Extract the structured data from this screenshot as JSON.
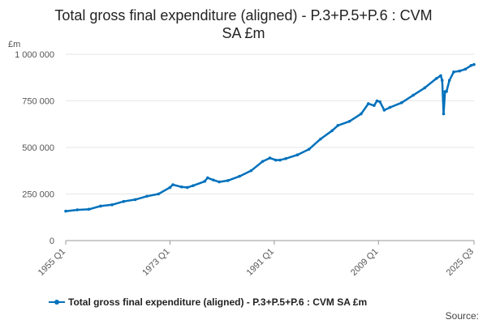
{
  "chart_data": {
    "type": "line",
    "title_lines": [
      "Total gross final expenditure (aligned) - P.3+P.5+P.6 : CVM",
      "SA £m"
    ],
    "unit_label": "£m",
    "x_range": [
      "1955 Q1",
      "2025 Q3"
    ],
    "x_ticks": [
      "1955 Q1",
      "1973 Q1",
      "1991 Q1",
      "2009 Q1",
      "2025 Q3"
    ],
    "ylim": [
      0,
      1000000
    ],
    "y_ticks": [
      0,
      250000,
      500000,
      750000,
      1000000
    ],
    "y_tick_labels": [
      "0",
      "250 000",
      "500 000",
      "750 000",
      "1 000 000"
    ],
    "grid": true,
    "legend_position": "bottom",
    "series": [
      {
        "name": "Total gross final expenditure (aligned) - P.3+P.5+P.6 : CVM SA £m",
        "color": "#0071bc",
        "points": [
          [
            "1955 Q1",
            158000
          ],
          [
            "1957 Q1",
            165000
          ],
          [
            "1959 Q1",
            168000
          ],
          [
            "1961 Q1",
            185000
          ],
          [
            "1963 Q1",
            192000
          ],
          [
            "1965 Q1",
            210000
          ],
          [
            "1967 Q1",
            220000
          ],
          [
            "1969 Q1",
            238000
          ],
          [
            "1971 Q1",
            250000
          ],
          [
            "1973 Q1",
            285000
          ],
          [
            "1973 Q3",
            300000
          ],
          [
            "1975 Q1",
            288000
          ],
          [
            "1976 Q1",
            285000
          ],
          [
            "1977 Q1",
            295000
          ],
          [
            "1979 Q1",
            318000
          ],
          [
            "1979 Q3",
            337000
          ],
          [
            "1980 Q3",
            325000
          ],
          [
            "1981 Q3",
            315000
          ],
          [
            "1983 Q1",
            322000
          ],
          [
            "1985 Q1",
            345000
          ],
          [
            "1987 Q1",
            375000
          ],
          [
            "1989 Q1",
            425000
          ],
          [
            "1990 Q2",
            443000
          ],
          [
            "1991 Q2",
            432000
          ],
          [
            "1992 Q1",
            432000
          ],
          [
            "1993 Q1",
            440000
          ],
          [
            "1995 Q1",
            460000
          ],
          [
            "1997 Q1",
            490000
          ],
          [
            "1999 Q1",
            545000
          ],
          [
            "2001 Q1",
            590000
          ],
          [
            "2002 Q1",
            618000
          ],
          [
            "2004 Q1",
            640000
          ],
          [
            "2006 Q1",
            680000
          ],
          [
            "2007 Q2",
            735000
          ],
          [
            "2008 Q2",
            725000
          ],
          [
            "2008 Q4",
            750000
          ],
          [
            "2009 Q2",
            745000
          ],
          [
            "2010 Q1",
            700000
          ],
          [
            "2011 Q1",
            715000
          ],
          [
            "2013 Q1",
            740000
          ],
          [
            "2015 Q1",
            780000
          ],
          [
            "2017 Q1",
            820000
          ],
          [
            "2019 Q1",
            870000
          ],
          [
            "2019 Q4",
            885000
          ],
          [
            "2020 Q1",
            860000
          ],
          [
            "2020 Q2",
            680000
          ],
          [
            "2020 Q3",
            800000
          ],
          [
            "2020 Q4",
            800000
          ],
          [
            "2021 Q2",
            860000
          ],
          [
            "2022 Q1",
            905000
          ],
          [
            "2023 Q1",
            910000
          ],
          [
            "2024 Q1",
            920000
          ],
          [
            "2025 Q1",
            940000
          ],
          [
            "2025 Q3",
            945000
          ]
        ]
      }
    ]
  },
  "source_label": "Source:"
}
